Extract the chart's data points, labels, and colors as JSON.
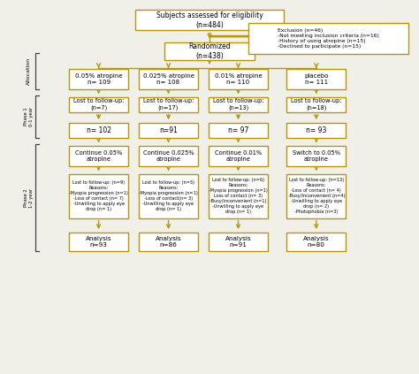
{
  "bg_color": "#f0efe8",
  "box_color": "#b8960c",
  "box_facecolor": "#ffffff",
  "text_color": "#000000",
  "arrow_color": "#b8960c",
  "bracket_color": "#444444",
  "title": "Subjects assessed for eligibility\n(n=484)",
  "randomized": "Randomized\n(n=438)",
  "exclusion": "Exclusion (n=46)\n-Not meeting inclusion criteria (n=16)\n-History of using atropine (n=15)\n-Declined to participate (n=15)",
  "groups": [
    "0.05% atropine\nn= 109",
    "0.025% atropine\nn= 108",
    "0.01% atropine\nn= 110",
    "placebo\nn= 111"
  ],
  "lost1": [
    "Lost to follow-up:\n(n=7)",
    "Lost to follow-up:\n(n=17)",
    "Lost to follow-up:\n(n=13)",
    "Lost to follow-up:\n(n=18)"
  ],
  "after_phase1": [
    "n= 102",
    "n=91",
    "n= 97",
    "n= 93"
  ],
  "continue_labels": [
    "Continue 0.05%\natropine",
    "Continue 0.025%\natropine",
    "Continue 0.01%\natropine",
    "Switch to 0.05%\natropine"
  ],
  "lost2": [
    "Lost to follow-up: (n=9)\nReasons:\n-Myopia progression (n=1)\n-Loss of contact (n= 7)\n-Unwilling to apply eye\ndrop (n= 1)",
    "Lost to follow-up: (n=5)\nReasons:\n-Myopia progression (n=1)\n-Loss of contact(n= 3)\n-Unwilling to apply eye\ndrop (n= 1)",
    "Lost to follow-up: (n=6)\nReasons:\n-Myopia progression (n=1)\nLoss of contact (n= 3)\n-Busy/inconvenient (n=1)\n-Unwilling to apply eye\ndrop (n= 1)",
    "Lost to follow-up: (n=13)\nReasons:\n-Loss of contact (n= 4)\n-Busy/Inconvenient (n=4)\n-Unwilling to apply eye\ndrop (n= 2)\n-Photophobia (n=3)"
  ],
  "analysis": [
    "Analysis\nn=93",
    "Analysis\nn=86",
    "Analysis\nn=91",
    "Analysis\nn=80"
  ],
  "figsize": [
    4.74,
    4.23
  ],
  "dpi": 100
}
